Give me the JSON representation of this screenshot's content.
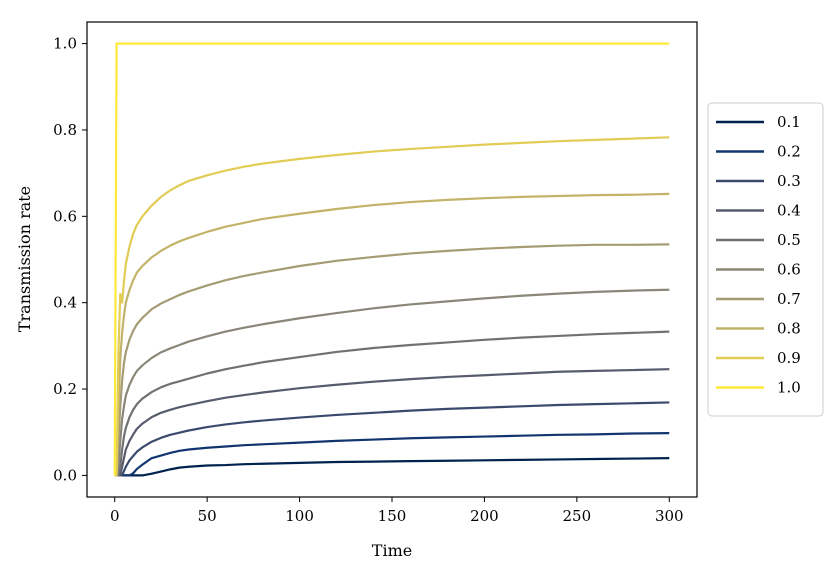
{
  "chart_data": {
    "type": "line",
    "title": "",
    "xlabel": "Time",
    "ylabel": "Transmission rate",
    "xlim": [
      -15,
      315
    ],
    "ylim": [
      -0.05,
      1.05
    ],
    "xticks": [
      "0",
      "50",
      "100",
      "150",
      "200",
      "250",
      "300"
    ],
    "yticks": [
      "0.0",
      "0.2",
      "0.4",
      "0.6",
      "0.8",
      "1.0"
    ],
    "grid": false,
    "legend_position": "right",
    "x": [
      0,
      1,
      2,
      3,
      4,
      5,
      6,
      8,
      10,
      12,
      15,
      20,
      25,
      30,
      35,
      40,
      50,
      60,
      70,
      80,
      100,
      120,
      140,
      160,
      180,
      200,
      220,
      240,
      260,
      280,
      300
    ],
    "series": [
      {
        "name": "0.1",
        "color": "#00224e",
        "values": [
          0,
          0,
          0,
          0,
          0,
          0,
          0,
          0,
          0,
          0,
          0,
          0.004,
          0.009,
          0.014,
          0.018,
          0.02,
          0.023,
          0.024,
          0.026,
          0.027,
          0.029,
          0.031,
          0.032,
          0.033,
          0.034,
          0.035,
          0.036,
          0.037,
          0.038,
          0.039,
          0.04
        ]
      },
      {
        "name": "0.2",
        "color": "#123570",
        "values": [
          0,
          0,
          0,
          0,
          0,
          0,
          0,
          0,
          0.005,
          0.015,
          0.025,
          0.04,
          0.046,
          0.052,
          0.057,
          0.06,
          0.064,
          0.067,
          0.07,
          0.072,
          0.076,
          0.08,
          0.083,
          0.086,
          0.088,
          0.09,
          0.092,
          0.094,
          0.095,
          0.097,
          0.098
        ]
      },
      {
        "name": "0.3",
        "color": "#3b496c",
        "values": [
          0,
          0,
          0,
          0,
          0,
          0.01,
          0.02,
          0.035,
          0.045,
          0.055,
          0.065,
          0.078,
          0.087,
          0.094,
          0.099,
          0.104,
          0.112,
          0.118,
          0.123,
          0.127,
          0.134,
          0.14,
          0.145,
          0.15,
          0.154,
          0.157,
          0.16,
          0.163,
          0.165,
          0.167,
          0.169
        ]
      },
      {
        "name": "0.4",
        "color": "#575c6d",
        "values": [
          0,
          0,
          0,
          0,
          0.02,
          0.04,
          0.06,
          0.08,
          0.095,
          0.108,
          0.12,
          0.135,
          0.145,
          0.152,
          0.158,
          0.163,
          0.172,
          0.18,
          0.186,
          0.192,
          0.202,
          0.21,
          0.217,
          0.223,
          0.228,
          0.232,
          0.236,
          0.24,
          0.242,
          0.244,
          0.246
        ]
      },
      {
        "name": "0.5",
        "color": "#707173",
        "values": [
          0,
          0,
          0,
          0.02,
          0.06,
          0.09,
          0.11,
          0.135,
          0.152,
          0.165,
          0.178,
          0.193,
          0.204,
          0.212,
          0.218,
          0.224,
          0.236,
          0.246,
          0.254,
          0.262,
          0.274,
          0.286,
          0.295,
          0.302,
          0.308,
          0.314,
          0.319,
          0.323,
          0.327,
          0.33,
          0.333
        ]
      },
      {
        "name": "0.6",
        "color": "#8a8779",
        "values": [
          0,
          0,
          0.02,
          0.08,
          0.13,
          0.16,
          0.185,
          0.21,
          0.228,
          0.242,
          0.255,
          0.272,
          0.285,
          0.294,
          0.302,
          0.31,
          0.322,
          0.333,
          0.342,
          0.35,
          0.364,
          0.376,
          0.387,
          0.396,
          0.403,
          0.41,
          0.416,
          0.421,
          0.425,
          0.428,
          0.43
        ]
      },
      {
        "name": "0.7",
        "color": "#a59c74",
        "values": [
          0,
          0,
          0.08,
          0.16,
          0.22,
          0.26,
          0.285,
          0.315,
          0.335,
          0.35,
          0.365,
          0.385,
          0.398,
          0.408,
          0.418,
          0.426,
          0.44,
          0.452,
          0.462,
          0.47,
          0.485,
          0.497,
          0.506,
          0.514,
          0.52,
          0.525,
          0.529,
          0.532,
          0.534,
          0.534,
          0.535
        ]
      },
      {
        "name": "0.8",
        "color": "#c3b369",
        "values": [
          0,
          0,
          0.15,
          0.27,
          0.33,
          0.37,
          0.4,
          0.43,
          0.452,
          0.47,
          0.485,
          0.505,
          0.52,
          0.532,
          0.542,
          0.55,
          0.564,
          0.576,
          0.585,
          0.594,
          0.606,
          0.617,
          0.626,
          0.633,
          0.638,
          0.642,
          0.645,
          0.647,
          0.649,
          0.65,
          0.652
        ]
      },
      {
        "name": "0.9",
        "color": "#e1cc55",
        "values": [
          0,
          0,
          0.28,
          0.42,
          0.4,
          0.45,
          0.49,
          0.53,
          0.56,
          0.58,
          0.6,
          0.625,
          0.645,
          0.66,
          0.672,
          0.682,
          0.695,
          0.706,
          0.715,
          0.722,
          0.733,
          0.742,
          0.75,
          0.756,
          0.761,
          0.766,
          0.77,
          0.774,
          0.777,
          0.78,
          0.783
        ]
      },
      {
        "name": "1.0",
        "color": "#fee838",
        "values": [
          0,
          1,
          1,
          1,
          1,
          1,
          1,
          1,
          1,
          1,
          1,
          1,
          1,
          1,
          1,
          1,
          1,
          1,
          1,
          1,
          1,
          1,
          1,
          1,
          1,
          1,
          1,
          1,
          1,
          1,
          1
        ]
      }
    ]
  }
}
